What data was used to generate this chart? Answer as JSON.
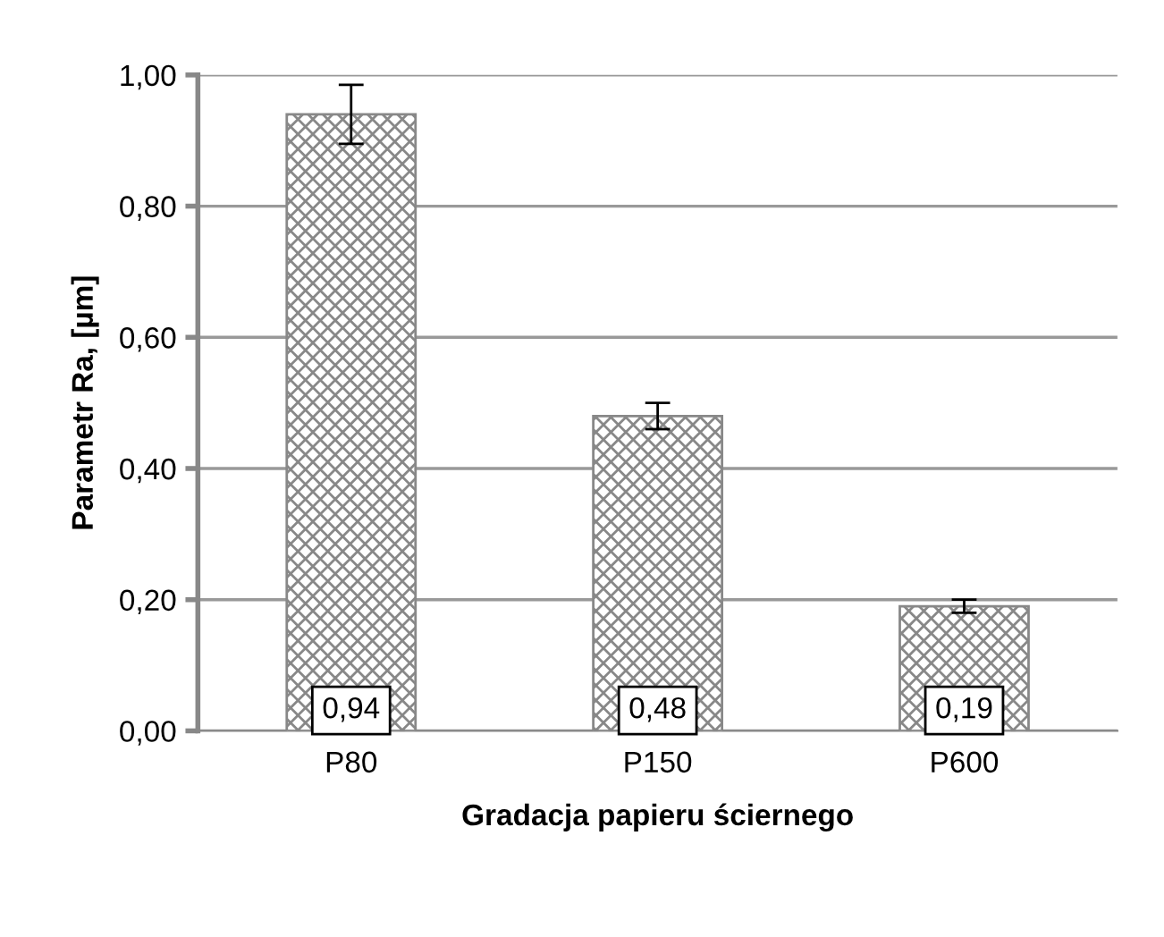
{
  "chart_data": {
    "type": "bar",
    "xlabel": "Gradacja papieru ściernego",
    "ylabel": "Parametr Ra, [µm]",
    "categories": [
      "P80",
      "P150",
      "P600"
    ],
    "values": [
      0.94,
      0.48,
      0.19
    ],
    "errors": [
      0.045,
      0.02,
      0.01
    ],
    "value_labels": [
      "0,94",
      "0,48",
      "0,19"
    ],
    "color": "#888888",
    "ylim": [
      0,
      1
    ],
    "yticks": [
      {
        "value": 0,
        "label": "0,00"
      },
      {
        "value": 0.2,
        "label": "0,20"
      },
      {
        "value": 0.4,
        "label": "0,40"
      },
      {
        "value": 0.6,
        "label": "0,60"
      },
      {
        "value": 0.8,
        "label": "0,80"
      },
      {
        "value": 1.0,
        "label": "1,00"
      }
    ],
    "grid": "y",
    "legend": false
  }
}
